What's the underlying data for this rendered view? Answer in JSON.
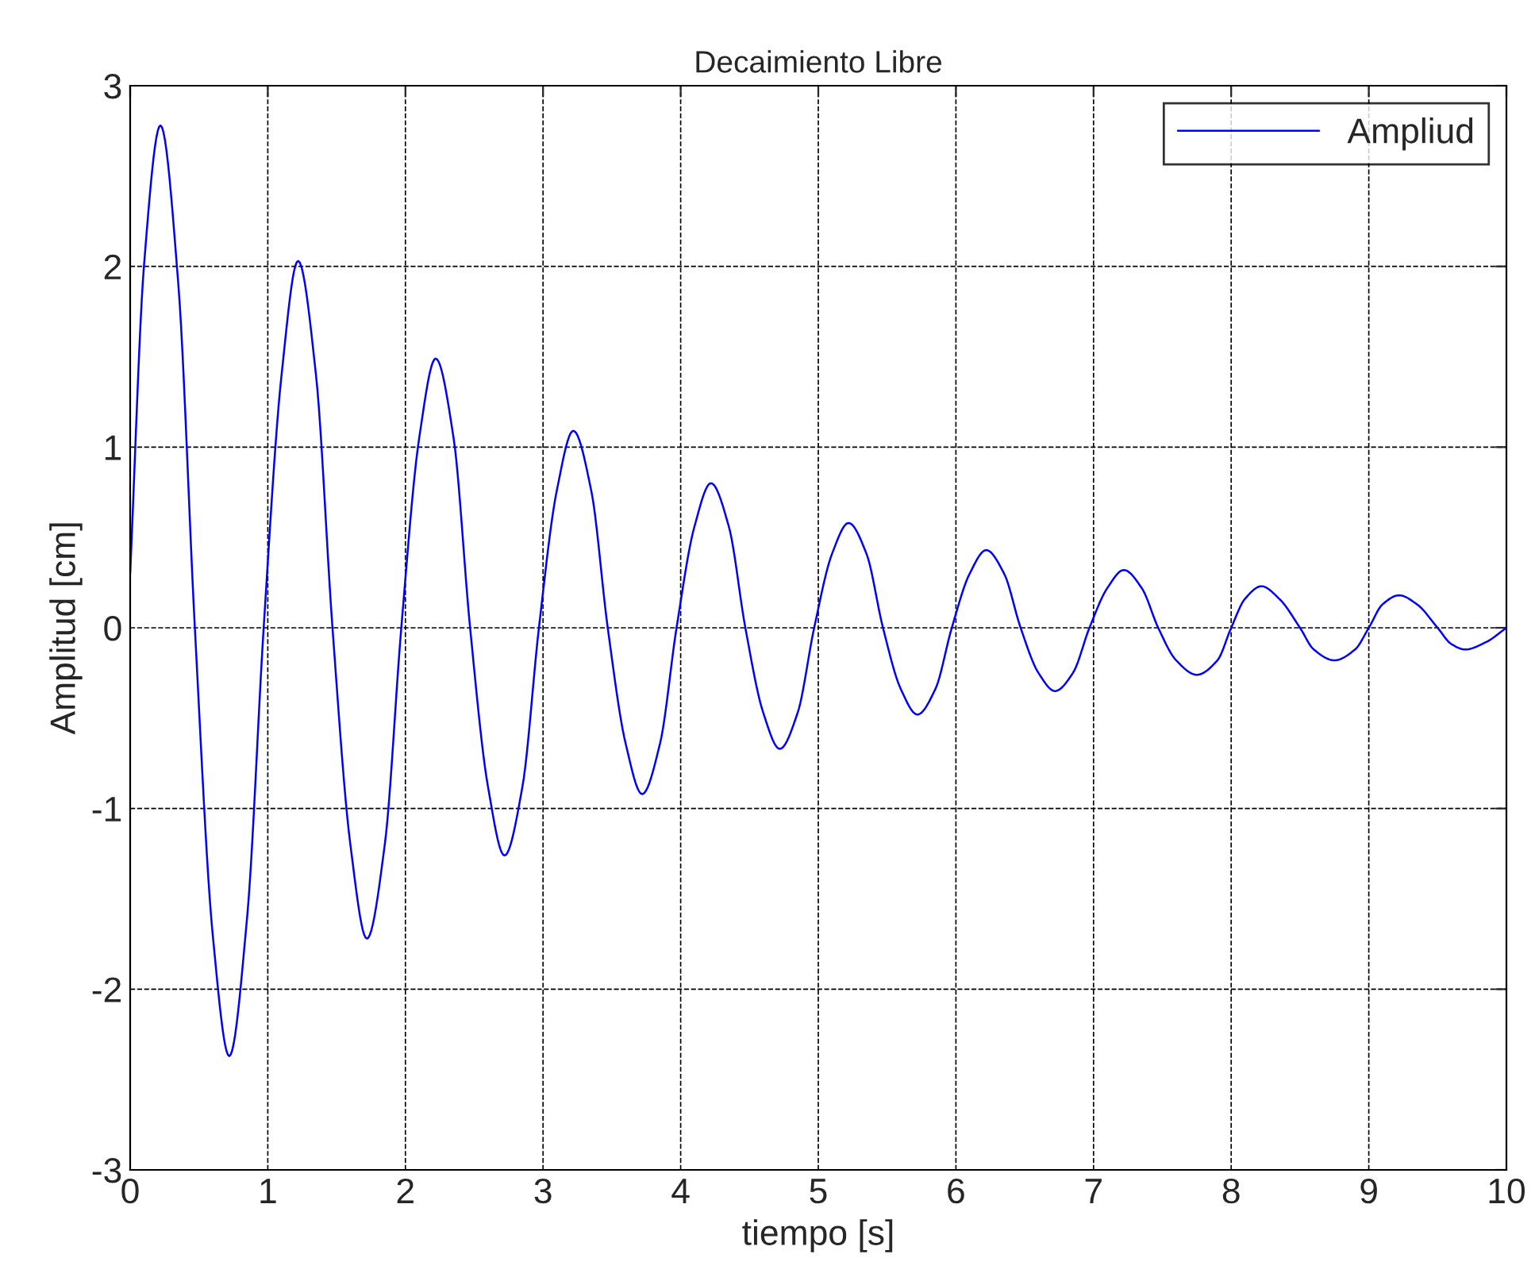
{
  "chart_data": {
    "type": "line",
    "title": "Decaimiento Libre",
    "xlabel": "tiempo [s]",
    "ylabel": "Amplitud [cm]",
    "xlim": [
      0,
      10
    ],
    "ylim": [
      -3,
      3
    ],
    "xticks": [
      0,
      1,
      2,
      3,
      4,
      5,
      6,
      7,
      8,
      9,
      10
    ],
    "yticks": [
      -3,
      -2,
      -1,
      0,
      1,
      2,
      3
    ],
    "grid": true,
    "legend": "top right",
    "marker": "none",
    "line_style": "solid",
    "series": [
      {
        "name": "Ampliud",
        "color": "#0000ff",
        "x": [
          0,
          0.1,
          0.22,
          0.35,
          0.47,
          0.6,
          0.72,
          0.85,
          0.97,
          1.1,
          1.22,
          1.35,
          1.47,
          1.6,
          1.72,
          1.85,
          1.97,
          2.1,
          2.22,
          2.35,
          2.47,
          2.6,
          2.72,
          2.85,
          2.97,
          3.1,
          3.22,
          3.35,
          3.47,
          3.6,
          3.72,
          3.85,
          3.97,
          4.1,
          4.22,
          4.35,
          4.47,
          4.6,
          4.72,
          4.85,
          4.97,
          5.1,
          5.22,
          5.35,
          5.47,
          5.6,
          5.72,
          5.85,
          5.97,
          6.1,
          6.22,
          6.35,
          6.47,
          6.6,
          6.72,
          6.85,
          6.97,
          7.1,
          7.22,
          7.35,
          7.47,
          7.6,
          7.75,
          7.9,
          8.0,
          8.1,
          8.22,
          8.35,
          8.5,
          8.6,
          8.75,
          8.9,
          9.0,
          9.1,
          9.22,
          9.35,
          9.5,
          9.6,
          9.7,
          9.85,
          10
        ],
        "values": [
          0.3,
          2.0,
          2.78,
          1.9,
          0,
          -1.7,
          -2.37,
          -1.6,
          0,
          1.4,
          2.03,
          1.4,
          0,
          -1.2,
          -1.72,
          -1.2,
          0,
          1.05,
          1.49,
          1.05,
          0,
          -0.88,
          -1.26,
          -0.88,
          0,
          0.76,
          1.09,
          0.76,
          0,
          -0.64,
          -0.92,
          -0.64,
          0,
          0.56,
          0.8,
          0.56,
          0,
          -0.47,
          -0.67,
          -0.47,
          0,
          0.41,
          0.58,
          0.41,
          0,
          -0.34,
          -0.48,
          -0.34,
          0,
          0.3,
          0.43,
          0.3,
          0,
          -0.25,
          -0.35,
          -0.25,
          0,
          0.22,
          0.32,
          0.22,
          0,
          -0.18,
          -0.26,
          -0.18,
          0,
          0.16,
          0.23,
          0.16,
          0,
          -0.12,
          -0.18,
          -0.12,
          0,
          0.13,
          0.18,
          0.13,
          0,
          -0.09,
          -0.12,
          -0.08,
          0
        ]
      }
    ]
  }
}
